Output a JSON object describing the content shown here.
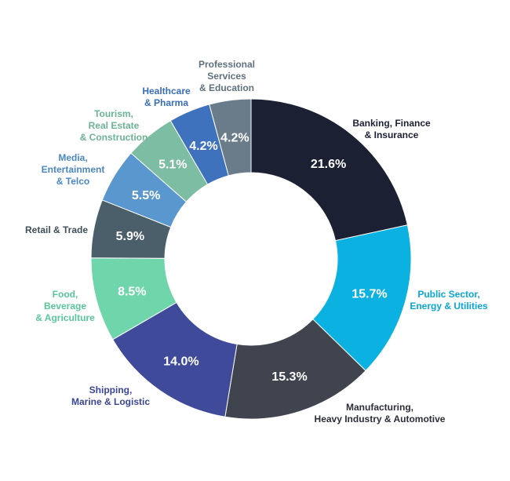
{
  "chart_data": {
    "type": "pie",
    "donut": true,
    "title": "",
    "slices": [
      {
        "label": [
          "Banking, Finance",
          "& Insurance"
        ],
        "value": 21.6,
        "display": "21.6%",
        "color": "#1c2033",
        "label_color": "#1c2033"
      },
      {
        "label": [
          "Public Sector,",
          "Energy & Utilities"
        ],
        "value": 15.7,
        "display": "15.7%",
        "color": "#0bb1e0",
        "label_color": "#0aa6d6"
      },
      {
        "label": [
          "Manufacturing,",
          "Heavy Industry & Automotive"
        ],
        "value": 15.3,
        "display": "15.3%",
        "color": "#40444f",
        "label_color": "#2b2e38"
      },
      {
        "label": [
          "Shipping,",
          "Marine & Logistic"
        ],
        "value": 14.0,
        "display": "14.0%",
        "color": "#3f4a9a",
        "label_color": "#3a4596"
      },
      {
        "label": [
          "Food,",
          "Beverage",
          "& Agriculture"
        ],
        "value": 8.5,
        "display": "8.5%",
        "color": "#6fd6ac",
        "label_color": "#57c79a"
      },
      {
        "label": [
          "Retail & Trade"
        ],
        "value": 5.9,
        "display": "5.9%",
        "color": "#4b5f6a",
        "label_color": "#3e4f59"
      },
      {
        "label": [
          "Media,",
          "Entertainment",
          "& Telco"
        ],
        "value": 5.5,
        "display": "5.5%",
        "color": "#5b97cf",
        "label_color": "#4b88c3"
      },
      {
        "label": [
          "Tourism,",
          "Real Estate",
          "& Construction"
        ],
        "value": 5.1,
        "display": "5.1%",
        "color": "#7dbda3",
        "label_color": "#6cb294"
      },
      {
        "label": [
          "Healthcare",
          "& Pharma"
        ],
        "value": 4.2,
        "display": "4.2%",
        "color": "#3f72bd",
        "label_color": "#3a6db8"
      },
      {
        "label": [
          "Professional",
          "Services",
          "& Education"
        ],
        "value": 4.2,
        "display": "4.2%",
        "color": "#6a7b89",
        "label_color": "#5f707e"
      }
    ]
  }
}
